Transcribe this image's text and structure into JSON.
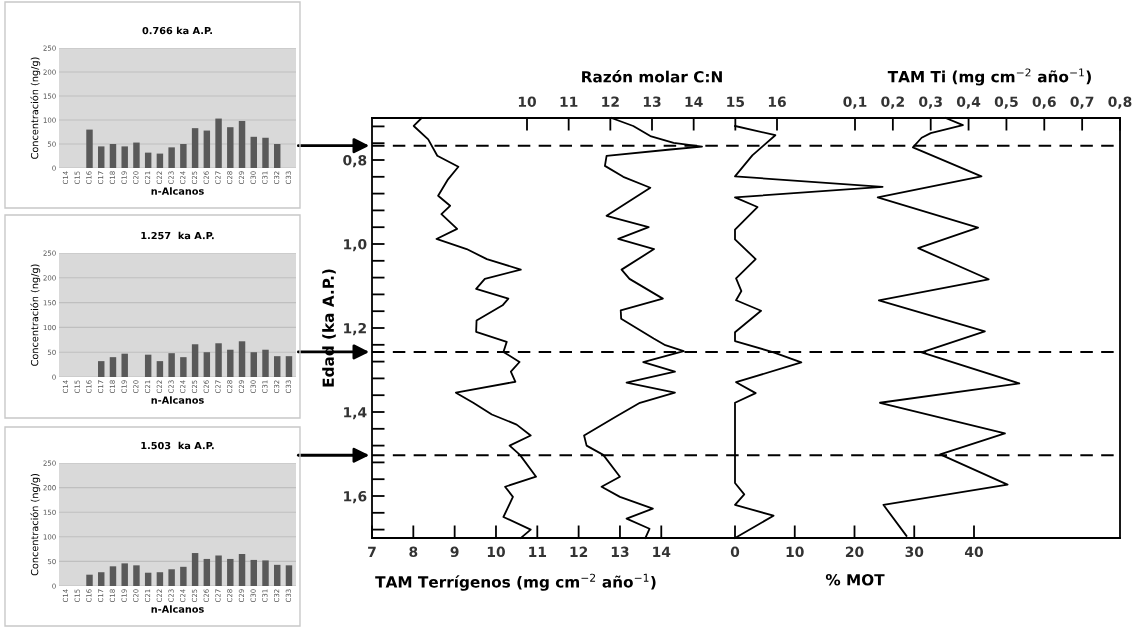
{
  "chart_data": [
    {
      "type": "bar",
      "title": "0.766 ka A.P.",
      "xlabel": "n-Alcanos",
      "ylabel": "Concentración (ng/g)",
      "color": "#595959",
      "grid": "y",
      "ylim": [
        0,
        250
      ],
      "yticks": [
        0,
        50,
        100,
        150,
        200,
        250
      ],
      "categories": [
        "C14",
        "C15",
        "C16",
        "C17",
        "C18",
        "C19",
        "C20",
        "C21",
        "C22",
        "C23",
        "C24",
        "C25",
        "C26",
        "C27",
        "C28",
        "C29",
        "C30",
        "C31",
        "C32",
        "C33"
      ],
      "values": [
        null,
        null,
        80,
        45,
        50,
        45,
        53,
        32,
        30,
        43,
        50,
        83,
        78,
        103,
        85,
        98,
        65,
        63,
        50,
        null
      ]
    },
    {
      "type": "bar",
      "title": "1.257  ka A.P.",
      "xlabel": "n-Alcanos",
      "ylabel": "Concentración (ng/g)",
      "color": "#595959",
      "grid": "y",
      "ylim": [
        0,
        250
      ],
      "yticks": [
        0,
        50,
        100,
        150,
        200,
        250
      ],
      "categories": [
        "C14",
        "C15",
        "C16",
        "C17",
        "C18",
        "C19",
        "C20",
        "C21",
        "C22",
        "C23",
        "C24",
        "C25",
        "C26",
        "C27",
        "C28",
        "C29",
        "C30",
        "C31",
        "C32",
        "C33"
      ],
      "values": [
        null,
        null,
        null,
        32,
        40,
        47,
        null,
        45,
        32,
        48,
        40,
        66,
        50,
        68,
        55,
        72,
        50,
        55,
        42,
        42
      ]
    },
    {
      "type": "bar",
      "title": "1.503  ka A.P.",
      "xlabel": "n-Alcanos",
      "ylabel": "Concentración (ng/g)",
      "color": "#595959",
      "grid": "y",
      "ylim": [
        0,
        250
      ],
      "yticks": [
        0,
        50,
        100,
        150,
        200,
        250
      ],
      "categories": [
        "C14",
        "C15",
        "C16",
        "C17",
        "C18",
        "C19",
        "C20",
        "C21",
        "C22",
        "C23",
        "C24",
        "C25",
        "C26",
        "C27",
        "C28",
        "C29",
        "C30",
        "C31",
        "C32",
        "C33"
      ],
      "values": [
        null,
        null,
        23,
        28,
        40,
        46,
        42,
        27,
        28,
        34,
        39,
        67,
        55,
        62,
        55,
        65,
        53,
        52,
        43,
        42
      ]
    },
    {
      "type": "line",
      "ylabel": "Edad (ka A.P.)",
      "ylim": [
        1.7,
        0.7
      ],
      "yticks": [
        {
          "value": 0.72,
          "label": null
        },
        {
          "value": 0.76,
          "label": null
        },
        {
          "value": 0.8,
          "label": "0,8"
        },
        {
          "value": 0.84,
          "label": null
        },
        {
          "value": 0.88,
          "label": null
        },
        {
          "value": 0.92,
          "label": null
        },
        {
          "value": 0.96,
          "label": null
        },
        {
          "value": 1.0,
          "label": "1,0"
        },
        {
          "value": 1.04,
          "label": null
        },
        {
          "value": 1.08,
          "label": null
        },
        {
          "value": 1.12,
          "label": null
        },
        {
          "value": 1.16,
          "label": null
        },
        {
          "value": 1.2,
          "label": "1,2"
        },
        {
          "value": 1.24,
          "label": null
        },
        {
          "value": 1.28,
          "label": null
        },
        {
          "value": 1.32,
          "label": null
        },
        {
          "value": 1.36,
          "label": null
        },
        {
          "value": 1.4,
          "label": "1,4"
        },
        {
          "value": 1.44,
          "label": null
        },
        {
          "value": 1.48,
          "label": null
        },
        {
          "value": 1.52,
          "label": null
        },
        {
          "value": 1.56,
          "label": null
        },
        {
          "value": 1.6,
          "label": "1,6"
        },
        {
          "value": 1.64,
          "label": null
        },
        {
          "value": 1.68,
          "label": null
        }
      ],
      "xlabel": "TAM Terrígenos (mg cm$^{−2}$ año$^{−1}$)",
      "xlim": [
        7,
        25.1
      ],
      "xticks": [
        7,
        8,
        9,
        10,
        11,
        12,
        13,
        14
      ],
      "ref_lines": [
        {
          "axis": "y",
          "value": 0.766,
          "color": "#000000",
          "line_style": "dashed"
        },
        {
          "axis": "y",
          "value": 1.257,
          "color": "#000000",
          "line_style": "dashed"
        },
        {
          "axis": "y",
          "value": 1.503,
          "color": "#000000",
          "line_style": "dashed"
        }
      ],
      "series": [
        {
          "color": "#000000",
          "x": [
            8.2,
            8.01,
            8.36,
            8.58,
            9.09,
            8.84,
            8.6,
            8.89,
            8.68,
            9.06,
            8.56,
            9.29,
            9.78,
            10.6,
            9.73,
            9.52,
            10.3,
            10.16,
            9.53,
            9.52,
            10.26,
            10.18,
            10.57,
            10.36,
            10.47,
            9.03,
            9.45,
            9.9,
            10.5,
            10.84,
            10.33,
            10.58,
            10.97,
            10.22,
            10.41,
            10.18,
            10.84,
            10.6
          ],
          "values": [
            0.7,
            0.719,
            0.751,
            0.79,
            0.816,
            0.846,
            0.885,
            0.909,
            0.929,
            0.964,
            0.988,
            1.012,
            1.036,
            1.061,
            1.083,
            1.107,
            1.13,
            1.146,
            1.182,
            1.209,
            1.233,
            1.257,
            1.281,
            1.304,
            1.328,
            1.354,
            1.378,
            1.406,
            1.43,
            1.456,
            1.48,
            1.502,
            1.554,
            1.578,
            1.602,
            1.65,
            1.68,
            1.7
          ]
        }
      ]
    },
    {
      "type": "line",
      "tick_labels": "x",
      "ylim": [
        1.7,
        0.7
      ],
      "xlabel": "Razón molar C:N",
      "xlim": [
        10,
        16
      ],
      "xticks": [
        10,
        11,
        12,
        13,
        14,
        15,
        16
      ],
      "series": [
        {
          "color": "#000000",
          "x": [
            12.03,
            12.55,
            12.96,
            13.52,
            14.2,
            13.44,
            11.91,
            11.87,
            12.31,
            12.96,
            11.91,
            12.92,
            12.19,
            13.05,
            12.27,
            12.46,
            13.26,
            12.25,
            12.26,
            13.04,
            13.32,
            13.76,
            12.79,
            13.55,
            12.39,
            13.55,
            12.71,
            12.15,
            11.37,
            11.43,
            11.83,
            12.23,
            11.79,
            12.23,
            13.02,
            12.39,
            12.94,
            12.84
          ],
          "values": [
            0.7,
            0.719,
            0.743,
            0.759,
            0.768,
            0.775,
            0.79,
            0.814,
            0.84,
            0.866,
            0.933,
            0.96,
            0.988,
            1.012,
            1.061,
            1.083,
            1.13,
            1.158,
            1.178,
            1.225,
            1.241,
            1.255,
            1.281,
            1.304,
            1.33,
            1.354,
            1.378,
            1.41,
            1.456,
            1.48,
            1.502,
            1.554,
            1.578,
            1.602,
            1.63,
            1.654,
            1.678,
            1.7
          ]
        }
      ]
    },
    {
      "type": "line",
      "tick_labels": "x",
      "ylim": [
        1.7,
        0.7
      ],
      "xlabel": "% MOT",
      "xlim": [
        0,
        40
      ],
      "xticks": [
        0,
        10,
        20,
        30,
        40
      ],
      "series": [
        {
          "color": "#000000",
          "x": [
            0,
            6.75,
            2.9,
            0,
            24.7,
            0,
            3.76,
            0,
            0,
            3.46,
            0.18,
            1.07,
            0.18,
            4.36,
            0,
            0,
            6.45,
            11.1,
            0.18,
            3.46,
            0,
            0,
            1.55,
            0,
            6.45,
            0
          ],
          "values": [
            0.719,
            0.741,
            0.789,
            0.839,
            0.864,
            0.889,
            0.912,
            0.966,
            0.989,
            1.036,
            1.082,
            1.112,
            1.134,
            1.159,
            1.21,
            1.231,
            1.258,
            1.282,
            1.329,
            1.355,
            1.378,
            1.569,
            1.596,
            1.621,
            1.647,
            1.7
          ]
        }
      ]
    },
    {
      "type": "line",
      "tick_labels": "x",
      "ylim": [
        1.7,
        0.7
      ],
      "xlabel": "TAM Ti (mg cm$^{−2}$ año$^{−1}$)",
      "xlim": [
        0.1,
        0.8
      ],
      "xticks": [
        {
          "value": 0.1,
          "label": "0,1"
        },
        {
          "value": 0.2,
          "label": "0,2"
        },
        {
          "value": 0.3,
          "label": "0,3"
        },
        {
          "value": 0.4,
          "label": "0,4"
        },
        {
          "value": 0.5,
          "label": "0,5"
        },
        {
          "value": 0.6,
          "label": "0,6"
        },
        {
          "value": 0.7,
          "label": "0,7"
        },
        {
          "value": 0.8,
          "label": "0,8"
        }
      ],
      "series": [
        {
          "color": "#000000",
          "x": [
            0.34,
            0.385,
            0.3,
            0.276,
            0.253,
            0.434,
            0.16,
            0.425,
            0.267,
            0.453,
            0.163,
            0.443,
            0.276,
            0.534,
            0.166,
            0.496,
            0.325,
            0.503,
            0.175,
            0.236
          ],
          "values": [
            0.7,
            0.717,
            0.736,
            0.747,
            0.77,
            0.839,
            0.889,
            0.961,
            1.01,
            1.084,
            1.134,
            1.208,
            1.258,
            1.332,
            1.378,
            1.451,
            1.501,
            1.573,
            1.621,
            1.695
          ]
        }
      ]
    }
  ]
}
